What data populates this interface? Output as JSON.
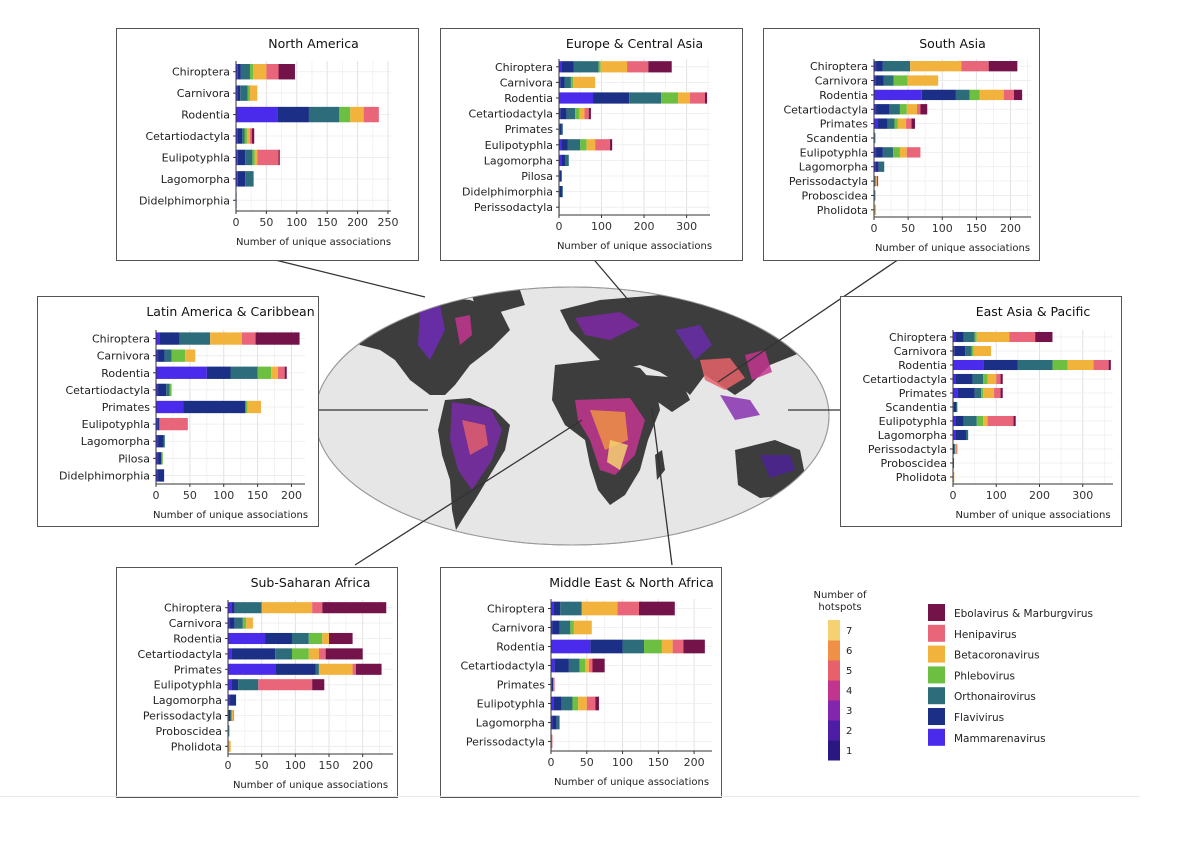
{
  "series": [
    {
      "name": "Mammarenavirus",
      "color": "#4B2BEB"
    },
    {
      "name": "Flavivirus",
      "color": "#1B2F86"
    },
    {
      "name": "Orthonairovirus",
      "color": "#2D6D7B"
    },
    {
      "name": "Phlebovirus",
      "color": "#6DBF42"
    },
    {
      "name": "Betacoronavirus",
      "color": "#F2B33D"
    },
    {
      "name": "Henipavirus",
      "color": "#E8657A"
    },
    {
      "name": "Ebolavirus & Marburgvirus",
      "color": "#74124A"
    }
  ],
  "hotspot_legend": {
    "title_line1": "Number of",
    "title_line2": "hotspots",
    "levels": [
      "1",
      "2",
      "3",
      "4",
      "5",
      "6",
      "7"
    ],
    "colors": [
      "#2B1782",
      "#4E1DA6",
      "#8227AD",
      "#C2358E",
      "#E7616A",
      "#EE9146",
      "#F5D171"
    ]
  },
  "chart_data": [
    {
      "type": "bar",
      "orientation": "horizontal",
      "stacked": true,
      "title": "North America",
      "xlabel": "Number of unique associations",
      "xlim": [
        0,
        255
      ],
      "xticks": [
        0,
        50,
        100,
        150,
        200,
        250
      ],
      "categories": [
        "Chiroptera",
        "Carnivora",
        "Rodentia",
        "Cetartiodactyla",
        "Eulipotyphla",
        "Lagomorpha",
        "Didelphimorphia"
      ],
      "series": [
        {
          "name": "Mammarenavirus",
          "values": [
            3,
            2,
            68,
            2,
            3,
            3,
            1
          ]
        },
        {
          "name": "Flavivirus",
          "values": [
            5,
            5,
            52,
            8,
            12,
            12,
            0
          ]
        },
        {
          "name": "Orthonairovirus",
          "values": [
            15,
            12,
            50,
            4,
            12,
            14,
            0
          ]
        },
        {
          "name": "Phlebovirus",
          "values": [
            5,
            4,
            18,
            4,
            4,
            0,
            0
          ]
        },
        {
          "name": "Betacoronavirus",
          "values": [
            22,
            12,
            22,
            5,
            4,
            0,
            0
          ]
        },
        {
          "name": "Henipavirus",
          "values": [
            20,
            0,
            25,
            3,
            35,
            0,
            0
          ]
        },
        {
          "name": "Ebolavirus & Marburgvirus",
          "values": [
            27,
            0,
            0,
            4,
            2,
            0,
            0
          ]
        }
      ]
    },
    {
      "type": "bar",
      "orientation": "horizontal",
      "stacked": true,
      "title": "Europe & Central Asia",
      "xlabel": "Number of unique associations",
      "xlim": [
        0,
        355
      ],
      "xticks": [
        0,
        100,
        200,
        300
      ],
      "categories": [
        "Chiroptera",
        "Carnivora",
        "Rodentia",
        "Cetartiodactyla",
        "Primates",
        "Eulipotyphla",
        "Lagomorpha",
        "Pilosa",
        "Didelphimorphia",
        "Perissodactyla"
      ],
      "series": [
        {
          "name": "Mammarenavirus",
          "values": [
            5,
            3,
            80,
            3,
            2,
            5,
            5,
            2,
            2,
            0
          ]
        },
        {
          "name": "Flavivirus",
          "values": [
            30,
            10,
            85,
            15,
            4,
            15,
            10,
            3,
            5,
            1
          ]
        },
        {
          "name": "Orthonairovirus",
          "values": [
            58,
            15,
            75,
            20,
            3,
            30,
            8,
            2,
            2,
            0
          ]
        },
        {
          "name": "Phlebovirus",
          "values": [
            5,
            5,
            40,
            10,
            0,
            15,
            0,
            0,
            0,
            0
          ]
        },
        {
          "name": "Betacoronavirus",
          "values": [
            62,
            52,
            28,
            12,
            0,
            20,
            0,
            0,
            0,
            0
          ]
        },
        {
          "name": "Henipavirus",
          "values": [
            50,
            0,
            35,
            10,
            0,
            35,
            0,
            0,
            0,
            0
          ]
        },
        {
          "name": "Ebolavirus & Marburgvirus",
          "values": [
            55,
            0,
            5,
            5,
            0,
            5,
            0,
            0,
            0,
            0
          ]
        }
      ]
    },
    {
      "type": "bar",
      "orientation": "horizontal",
      "stacked": true,
      "title": "South Asia",
      "xlabel": "Number of unique associations",
      "xlim": [
        0,
        230
      ],
      "xticks": [
        0,
        50,
        100,
        150,
        200
      ],
      "categories": [
        "Chiroptera",
        "Carnivora",
        "Rodentia",
        "Cetartiodactyla",
        "Primates",
        "Scandentia",
        "Eulipotyphla",
        "Lagomorpha",
        "Perissodactyla",
        "Proboscidea",
        "Pholidota"
      ],
      "series": [
        {
          "name": "Mammarenavirus",
          "values": [
            3,
            2,
            70,
            3,
            5,
            0,
            3,
            2,
            0,
            0,
            0
          ]
        },
        {
          "name": "Flavivirus",
          "values": [
            10,
            12,
            50,
            20,
            15,
            1,
            10,
            5,
            1,
            1,
            0
          ]
        },
        {
          "name": "Orthonairovirus",
          "values": [
            40,
            15,
            20,
            15,
            10,
            1,
            15,
            8,
            1,
            1,
            1
          ]
        },
        {
          "name": "Phlebovirus",
          "values": [
            0,
            20,
            15,
            10,
            5,
            0,
            10,
            0,
            1,
            0,
            0
          ]
        },
        {
          "name": "Betacoronavirus",
          "values": [
            75,
            45,
            35,
            15,
            12,
            0,
            10,
            0,
            1,
            0,
            2
          ]
        },
        {
          "name": "Henipavirus",
          "values": [
            40,
            0,
            15,
            5,
            8,
            0,
            20,
            0,
            1,
            0,
            0
          ]
        },
        {
          "name": "Ebolavirus & Marburgvirus",
          "values": [
            42,
            0,
            12,
            10,
            5,
            0,
            0,
            0,
            1,
            0,
            0
          ]
        }
      ]
    },
    {
      "type": "bar",
      "orientation": "horizontal",
      "stacked": true,
      "title": "Latin America & Caribbean",
      "xlabel": "Number of unique associations",
      "xlim": [
        0,
        220
      ],
      "xticks": [
        0,
        50,
        100,
        150,
        200
      ],
      "categories": [
        "Chiroptera",
        "Carnivora",
        "Rodentia",
        "Cetartiodactyla",
        "Primates",
        "Eulipotyphla",
        "Lagomorpha",
        "Pilosa",
        "Didelphimorphia"
      ],
      "series": [
        {
          "name": "Mammarenavirus",
          "values": [
            5,
            3,
            75,
            3,
            40,
            3,
            3,
            3,
            3
          ]
        },
        {
          "name": "Flavivirus",
          "values": [
            30,
            10,
            35,
            12,
            92,
            2,
            8,
            5,
            9
          ]
        },
        {
          "name": "Orthonairovirus",
          "values": [
            45,
            10,
            40,
            5,
            0,
            0,
            2,
            0,
            0
          ]
        },
        {
          "name": "Phlebovirus",
          "values": [
            0,
            20,
            20,
            3,
            3,
            0,
            0,
            2,
            0
          ]
        },
        {
          "name": "Betacoronavirus",
          "values": [
            47,
            15,
            10,
            0,
            20,
            0,
            0,
            0,
            0
          ]
        },
        {
          "name": "Henipavirus",
          "values": [
            20,
            0,
            10,
            0,
            0,
            42,
            0,
            0,
            0
          ]
        },
        {
          "name": "Ebolavirus & Marburgvirus",
          "values": [
            65,
            0,
            3,
            0,
            0,
            0,
            0,
            0,
            0
          ]
        }
      ]
    },
    {
      "type": "bar",
      "orientation": "horizontal",
      "stacked": true,
      "title": "East Asia & Pacific",
      "xlabel": "Number of unique associations",
      "xlim": [
        0,
        370
      ],
      "xticks": [
        0,
        100,
        200,
        300
      ],
      "categories": [
        "Chiroptera",
        "Carnivora",
        "Rodentia",
        "Cetartiodactyla",
        "Primates",
        "Scandentia",
        "Eulipotyphla",
        "Lagomorpha",
        "Perissodactyla",
        "Proboscidea",
        "Pholidota"
      ],
      "series": [
        {
          "name": "Mammarenavirus",
          "values": [
            5,
            3,
            70,
            5,
            10,
            2,
            5,
            5,
            1,
            0,
            0
          ]
        },
        {
          "name": "Flavivirus",
          "values": [
            20,
            25,
            80,
            40,
            40,
            5,
            20,
            25,
            2,
            1,
            0
          ]
        },
        {
          "name": "Orthonairovirus",
          "values": [
            25,
            15,
            80,
            25,
            15,
            3,
            30,
            5,
            2,
            1,
            1
          ]
        },
        {
          "name": "Phlebovirus",
          "values": [
            5,
            5,
            35,
            10,
            5,
            0,
            15,
            0,
            1,
            0,
            0
          ]
        },
        {
          "name": "Betacoronavirus",
          "values": [
            75,
            40,
            60,
            20,
            25,
            0,
            10,
            0,
            2,
            0,
            2
          ]
        },
        {
          "name": "Henipavirus",
          "values": [
            60,
            0,
            35,
            10,
            15,
            0,
            60,
            0,
            2,
            0,
            0
          ]
        },
        {
          "name": "Ebolavirus & Marburgvirus",
          "values": [
            40,
            0,
            5,
            5,
            5,
            0,
            5,
            0,
            0,
            0,
            0
          ]
        }
      ]
    },
    {
      "type": "bar",
      "orientation": "horizontal",
      "stacked": true,
      "title": "Sub-Saharan Africa",
      "xlabel": "Number of unique associations",
      "xlim": [
        0,
        245
      ],
      "xticks": [
        0,
        50,
        100,
        150,
        200
      ],
      "categories": [
        "Chiroptera",
        "Carnivora",
        "Rodentia",
        "Cetartiodactyla",
        "Primates",
        "Eulipotyphla",
        "Lagomorpha",
        "Perissodactyla",
        "Proboscidea",
        "Pholidota"
      ],
      "series": [
        {
          "name": "Mammarenavirus",
          "values": [
            5,
            3,
            55,
            5,
            70,
            5,
            3,
            1,
            0,
            0
          ]
        },
        {
          "name": "Flavivirus",
          "values": [
            5,
            7,
            40,
            65,
            60,
            10,
            9,
            2,
            1,
            0
          ]
        },
        {
          "name": "Orthonairovirus",
          "values": [
            40,
            12,
            25,
            25,
            5,
            30,
            0,
            2,
            1,
            1
          ]
        },
        {
          "name": "Phlebovirus",
          "values": [
            0,
            5,
            20,
            25,
            0,
            0,
            0,
            1,
            0,
            0
          ]
        },
        {
          "name": "Betacoronavirus",
          "values": [
            75,
            10,
            10,
            15,
            50,
            0,
            0,
            2,
            0,
            3
          ]
        },
        {
          "name": "Henipavirus",
          "values": [
            15,
            0,
            0,
            10,
            5,
            80,
            0,
            1,
            0,
            0
          ]
        },
        {
          "name": "Ebolavirus & Marburgvirus",
          "values": [
            95,
            0,
            35,
            55,
            38,
            18,
            0,
            0,
            0,
            0
          ]
        }
      ]
    },
    {
      "type": "bar",
      "orientation": "horizontal",
      "stacked": true,
      "title": "Middle East & North Africa",
      "xlabel": "Number of unique associations",
      "xlim": [
        0,
        225
      ],
      "xticks": [
        0,
        50,
        100,
        150,
        200
      ],
      "categories": [
        "Chiroptera",
        "Carnivora",
        "Rodentia",
        "Cetartiodactyla",
        "Primates",
        "Eulipotyphla",
        "Lagomorpha",
        "Perissodactyla"
      ],
      "series": [
        {
          "name": "Mammarenavirus",
          "values": [
            3,
            2,
            55,
            5,
            1,
            3,
            2,
            0
          ]
        },
        {
          "name": "Flavivirus",
          "values": [
            10,
            10,
            45,
            20,
            2,
            12,
            6,
            1
          ]
        },
        {
          "name": "Orthonairovirus",
          "values": [
            30,
            15,
            30,
            15,
            0,
            15,
            4,
            0
          ]
        },
        {
          "name": "Phlebovirus",
          "values": [
            0,
            5,
            25,
            8,
            0,
            8,
            0,
            0
          ]
        },
        {
          "name": "Betacoronavirus",
          "values": [
            50,
            25,
            15,
            5,
            0,
            12,
            0,
            0
          ]
        },
        {
          "name": "Henipavirus",
          "values": [
            30,
            0,
            15,
            5,
            2,
            12,
            0,
            1
          ]
        },
        {
          "name": "Ebolavirus & Marburgvirus",
          "values": [
            50,
            0,
            30,
            17,
            0,
            5,
            0,
            0
          ]
        }
      ]
    }
  ]
}
